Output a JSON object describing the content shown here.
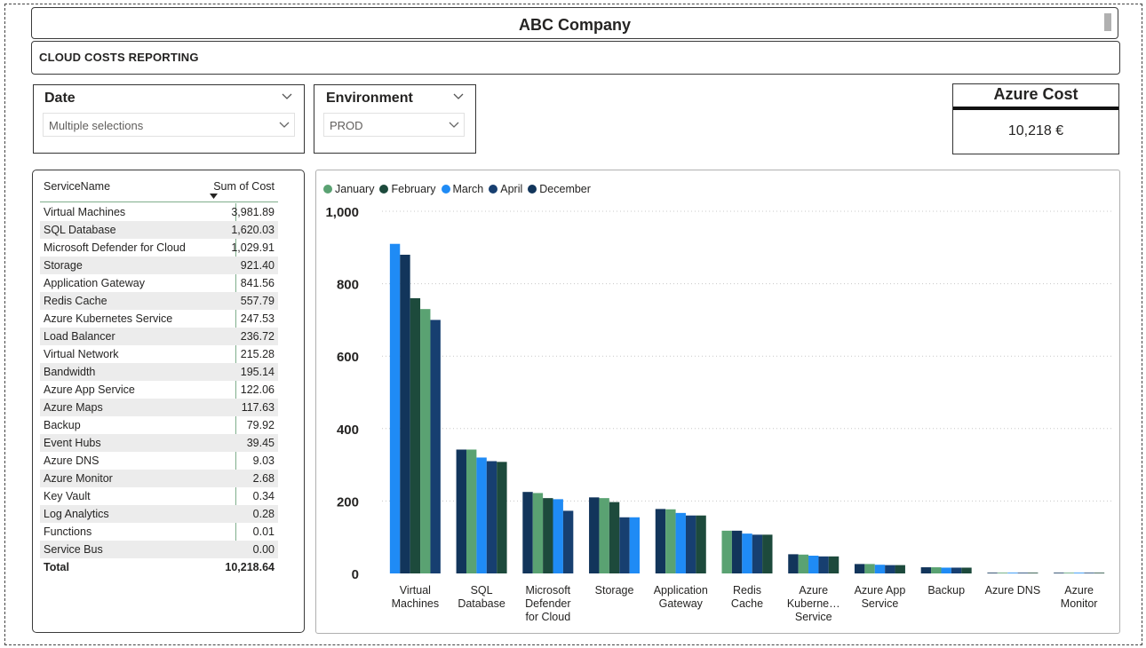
{
  "header": {
    "title": "ABC Company",
    "subtitle": "CLOUD COSTS REPORTING"
  },
  "slicers": {
    "date": {
      "title": "Date",
      "value": "Multiple selections"
    },
    "environment": {
      "title": "Environment",
      "value": "PROD"
    }
  },
  "card": {
    "title": "Azure Cost",
    "value": "10,218 €"
  },
  "table": {
    "headers": {
      "name": "ServiceName",
      "cost": "Sum of Cost"
    },
    "rows": [
      {
        "name": "Virtual Machines",
        "cost": "3,981.89"
      },
      {
        "name": "SQL Database",
        "cost": "1,620.03"
      },
      {
        "name": "Microsoft Defender for Cloud",
        "cost": "1,029.91"
      },
      {
        "name": "Storage",
        "cost": "921.40"
      },
      {
        "name": "Application Gateway",
        "cost": "841.56"
      },
      {
        "name": "Redis Cache",
        "cost": "557.79"
      },
      {
        "name": "Azure Kubernetes Service",
        "cost": "247.53"
      },
      {
        "name": "Load Balancer",
        "cost": "236.72"
      },
      {
        "name": "Virtual Network",
        "cost": "215.28"
      },
      {
        "name": "Bandwidth",
        "cost": "195.14"
      },
      {
        "name": "Azure App Service",
        "cost": "122.06"
      },
      {
        "name": "Azure Maps",
        "cost": "117.63"
      },
      {
        "name": "Backup",
        "cost": "79.92"
      },
      {
        "name": "Event Hubs",
        "cost": "39.45"
      },
      {
        "name": "Azure DNS",
        "cost": "9.03"
      },
      {
        "name": "Azure Monitor",
        "cost": "2.68"
      },
      {
        "name": "Key Vault",
        "cost": "0.34"
      },
      {
        "name": "Log Analytics",
        "cost": "0.28"
      },
      {
        "name": "Functions",
        "cost": "0.01"
      },
      {
        "name": "Service Bus",
        "cost": "0.00"
      }
    ],
    "total": {
      "name": "Total",
      "cost": "10,218.64"
    }
  },
  "chart_data": {
    "type": "bar",
    "title": "",
    "ylim": [
      0,
      1000
    ],
    "yticks": [
      "0",
      "200",
      "400",
      "600",
      "800",
      "1,000"
    ],
    "grid": true,
    "legend_position": "top-left",
    "categories": [
      [
        "Virtual",
        "Machines"
      ],
      [
        "SQL",
        "Database"
      ],
      [
        "Microsoft",
        "Defender",
        "for Cloud"
      ],
      [
        "Storage"
      ],
      [
        "Application",
        "Gateway"
      ],
      [
        "Redis",
        "Cache"
      ],
      [
        "Azure",
        "Kuberne…",
        "Service"
      ],
      [
        "Azure App",
        "Service"
      ],
      [
        "Backup"
      ],
      [
        "Azure DNS"
      ],
      [
        "Azure",
        "Monitor"
      ]
    ],
    "series": [
      {
        "name": "January",
        "color": "#5aa272"
      },
      {
        "name": "February",
        "color": "#1d4a3c"
      },
      {
        "name": "March",
        "color": "#1f8bf5"
      },
      {
        "name": "April",
        "color": "#173f70"
      },
      {
        "name": "December",
        "color": "#12355b"
      }
    ],
    "bars": [
      [
        {
          "s": 2,
          "v": 910
        },
        {
          "s": 4,
          "v": 880
        },
        {
          "s": 1,
          "v": 760
        },
        {
          "s": 0,
          "v": 730
        },
        {
          "s": 3,
          "v": 700
        }
      ],
      [
        {
          "s": 4,
          "v": 342
        },
        {
          "s": 0,
          "v": 342
        },
        {
          "s": 2,
          "v": 320
        },
        {
          "s": 3,
          "v": 310
        },
        {
          "s": 1,
          "v": 308
        }
      ],
      [
        {
          "s": 4,
          "v": 225
        },
        {
          "s": 0,
          "v": 222
        },
        {
          "s": 1,
          "v": 208
        },
        {
          "s": 2,
          "v": 205
        },
        {
          "s": 3,
          "v": 173
        }
      ],
      [
        {
          "s": 4,
          "v": 210
        },
        {
          "s": 0,
          "v": 208
        },
        {
          "s": 1,
          "v": 197
        },
        {
          "s": 3,
          "v": 155
        },
        {
          "s": 2,
          "v": 155
        }
      ],
      [
        {
          "s": 4,
          "v": 178
        },
        {
          "s": 0,
          "v": 177
        },
        {
          "s": 2,
          "v": 167
        },
        {
          "s": 3,
          "v": 160
        },
        {
          "s": 1,
          "v": 160
        }
      ],
      [
        {
          "s": 0,
          "v": 118
        },
        {
          "s": 4,
          "v": 118
        },
        {
          "s": 2,
          "v": 110
        },
        {
          "s": 3,
          "v": 107
        },
        {
          "s": 1,
          "v": 107
        }
      ],
      [
        {
          "s": 4,
          "v": 53
        },
        {
          "s": 0,
          "v": 52
        },
        {
          "s": 2,
          "v": 49
        },
        {
          "s": 3,
          "v": 47
        },
        {
          "s": 1,
          "v": 47
        }
      ],
      [
        {
          "s": 4,
          "v": 26
        },
        {
          "s": 0,
          "v": 26
        },
        {
          "s": 2,
          "v": 24
        },
        {
          "s": 3,
          "v": 23
        },
        {
          "s": 1,
          "v": 23
        }
      ],
      [
        {
          "s": 4,
          "v": 17
        },
        {
          "s": 0,
          "v": 17
        },
        {
          "s": 2,
          "v": 16
        },
        {
          "s": 3,
          "v": 16
        },
        {
          "s": 1,
          "v": 16
        }
      ],
      [
        {
          "s": 4,
          "v": 2
        },
        {
          "s": 0,
          "v": 2
        },
        {
          "s": 2,
          "v": 2
        },
        {
          "s": 3,
          "v": 2
        },
        {
          "s": 1,
          "v": 2
        }
      ],
      [
        {
          "s": 4,
          "v": 1
        },
        {
          "s": 0,
          "v": 1
        },
        {
          "s": 2,
          "v": 1
        },
        {
          "s": 3,
          "v": 1
        },
        {
          "s": 1,
          "v": 1
        }
      ]
    ]
  }
}
